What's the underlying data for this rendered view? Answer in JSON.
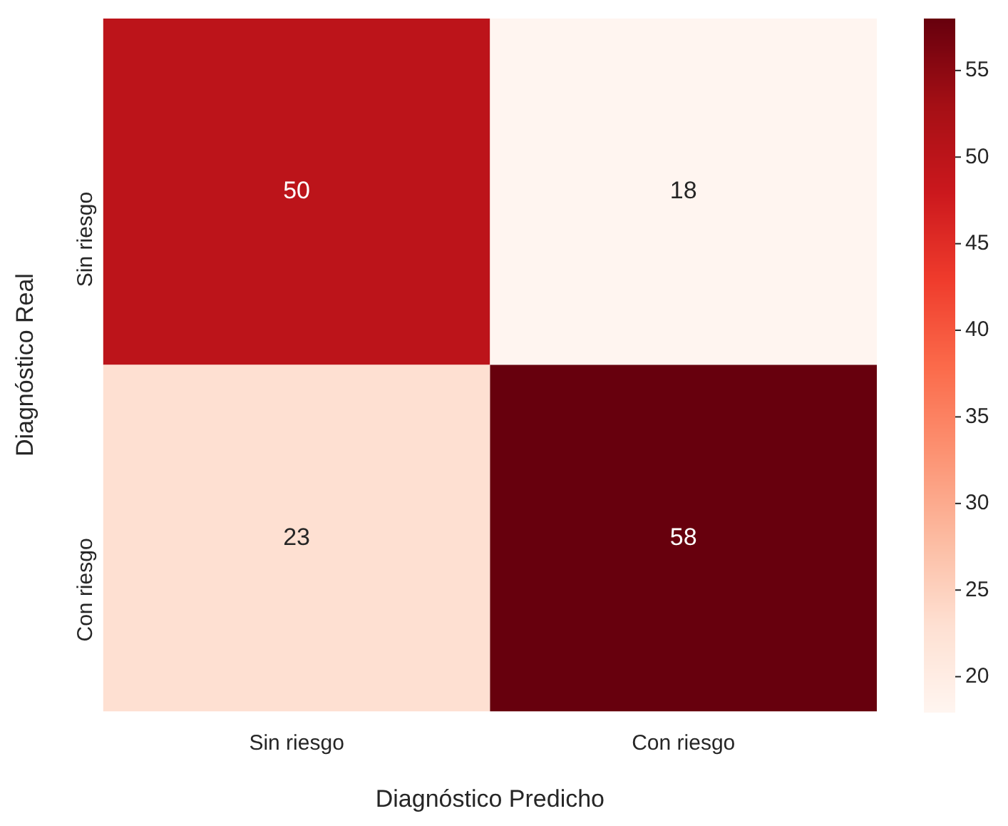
{
  "chart_data": {
    "type": "heatmap",
    "xlabel": "Diagnóstico Predicho",
    "ylabel": "Diagnóstico Real",
    "categories": [
      "Sin riesgo",
      "Con riesgo"
    ],
    "y_categories": [
      "Sin riesgo",
      "Con riesgo"
    ],
    "cells": [
      [
        50,
        18
      ],
      [
        23,
        58
      ]
    ],
    "data_labels": true,
    "clim": [
      18,
      58
    ],
    "cticks": [
      20,
      25,
      30,
      35,
      40,
      45,
      50,
      55
    ]
  }
}
